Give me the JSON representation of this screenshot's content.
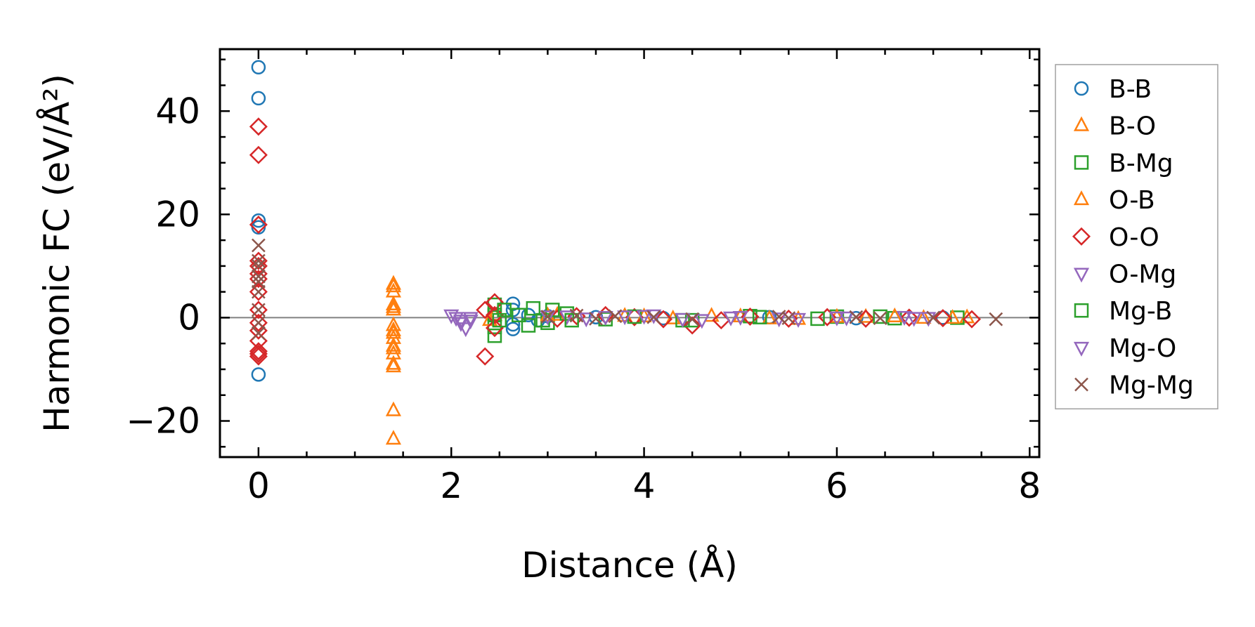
{
  "chart_data": {
    "type": "scatter",
    "title": "",
    "xlabel": "Distance (Å)",
    "ylabel": "Harmonic FC (eV/Å²)",
    "xlim": [
      -0.4,
      8.1
    ],
    "ylim": [
      -27,
      52
    ],
    "xticks": [
      0,
      2,
      4,
      6,
      8
    ],
    "yticks": [
      -20,
      0,
      20,
      40
    ],
    "ytick_labels": [
      "−20",
      "0",
      "20",
      "40"
    ],
    "zero_line": true,
    "legend_position": "right, outside",
    "series": [
      {
        "name": "B-B",
        "marker": "circle",
        "color": "#1f77b4",
        "x": [
          0,
          0,
          0,
          0,
          0,
          2.64,
          2.64,
          2.64,
          2.64,
          2.8,
          2.9,
          3.0,
          3.5,
          4.2,
          5.3,
          6.2,
          7.1
        ],
        "y": [
          48.5,
          42.5,
          18.8,
          17.5,
          -11,
          2.7,
          1.5,
          -1.3,
          -2.2,
          0.5,
          -0.5,
          0.3,
          0.1,
          -0.1,
          0.1,
          -0.1,
          0
        ]
      },
      {
        "name": "B-O",
        "marker": "triangle-up",
        "color": "#ff7f0e",
        "x": [
          1.4,
          1.4,
          1.4,
          1.4,
          1.4,
          1.4,
          1.4,
          1.4,
          1.4,
          1.4,
          1.4,
          2.45,
          3.1,
          3.8,
          4.3,
          5.0,
          5.6,
          6.3,
          6.9,
          7.35
        ],
        "y": [
          6,
          5,
          2.5,
          1.5,
          -1.5,
          -3,
          -5.5,
          -7,
          -9.5,
          -18,
          -23.5,
          0.5,
          0.5,
          0.3,
          -0.2,
          0.2,
          -0.3,
          0.1,
          -0.1,
          0
        ]
      },
      {
        "name": "B-Mg",
        "marker": "square",
        "color": "#2ca02c",
        "x": [
          2.45,
          2.45,
          2.45,
          2.45,
          2.7,
          2.85,
          3.0,
          3.2,
          3.6,
          4.5,
          5.1,
          6.0,
          6.6,
          7.25
        ],
        "y": [
          2.5,
          0.5,
          -1.8,
          -3.5,
          0.5,
          1.8,
          -1,
          0.8,
          -0.3,
          -0.5,
          0.3,
          0.2,
          -0.1,
          0
        ]
      },
      {
        "name": "O-B",
        "marker": "triangle-up",
        "color": "#ff7f0e",
        "x": [
          1.4,
          1.4,
          1.4,
          1.4,
          1.4,
          1.4,
          2.4,
          3.0,
          4.0,
          4.7,
          5.3,
          6.0,
          6.6,
          7.2
        ],
        "y": [
          6.5,
          2,
          -2.5,
          -4,
          -6,
          -9,
          -0.5,
          0.4,
          0.2,
          0.3,
          -0.2,
          0.1,
          0.2,
          -0.1
        ]
      },
      {
        "name": "O-O",
        "marker": "diamond",
        "color": "#d62728",
        "x": [
          0,
          0,
          0,
          0,
          0,
          0,
          0,
          0,
          0,
          0,
          0,
          0,
          0,
          0,
          0,
          2.35,
          2.35,
          2.45,
          2.45,
          2.45,
          3.1,
          3.3,
          3.6,
          3.9,
          4.2,
          4.5,
          4.8,
          5.1,
          5.5,
          5.9,
          6.3,
          6.75,
          7.1,
          7.4
        ],
        "y": [
          37,
          31.5,
          18,
          11,
          10,
          8.5,
          7.5,
          5,
          1.5,
          -1,
          -2.5,
          -4.5,
          -6.5,
          -7,
          -7.5,
          1.5,
          -7.5,
          3,
          0.5,
          -2,
          -0.2,
          0.3,
          0.5,
          0.1,
          -0.3,
          -1.5,
          -0.5,
          0.2,
          -0.2,
          0.1,
          -0.2,
          0,
          -0.1,
          -0.3
        ]
      },
      {
        "name": "O-Mg",
        "marker": "triangle-down",
        "color": "#9467bd",
        "x": [
          2.05,
          2.1,
          2.15,
          2.2,
          3.2,
          3.6,
          4.1,
          4.6,
          5.0,
          5.6,
          6.0,
          6.7,
          6.95
        ],
        "y": [
          0,
          -0.5,
          -2,
          0,
          0.3,
          0.2,
          0.5,
          -0.4,
          0.2,
          -0.2,
          0.1,
          0.2,
          0
        ]
      },
      {
        "name": "Mg-B",
        "marker": "square",
        "color": "#2ca02c",
        "x": [
          2.5,
          2.55,
          2.8,
          2.95,
          3.05,
          3.25,
          3.9,
          4.4,
          5.2,
          5.8,
          6.45
        ],
        "y": [
          -0.5,
          1.5,
          -1.5,
          -0.5,
          1.5,
          -0.5,
          0.2,
          -0.5,
          0.1,
          -0.2,
          0.2
        ]
      },
      {
        "name": "Mg-O",
        "marker": "triangle-down",
        "color": "#9467bd",
        "x": [
          2.0,
          2.1,
          2.2,
          3.0,
          3.4,
          3.8,
          4.0,
          4.4,
          4.9,
          5.4,
          6.1,
          6.8
        ],
        "y": [
          0.5,
          -1,
          -0.5,
          0.3,
          -0.1,
          0.3,
          0.4,
          -0.2,
          0.1,
          -0.1,
          0.1,
          0
        ]
      },
      {
        "name": "Mg-Mg",
        "marker": "x",
        "color": "#8c564b",
        "x": [
          0,
          0,
          0,
          0,
          0,
          0,
          0,
          0,
          0,
          3.0,
          3.3,
          3.5,
          3.7,
          4.1,
          4.5,
          5.4,
          5.5,
          6.2,
          6.45,
          7.0,
          7.65
        ],
        "y": [
          14,
          11,
          10,
          8,
          7,
          5,
          1.5,
          -1,
          -3,
          0.2,
          0.4,
          -0.2,
          0.3,
          0.1,
          -0.3,
          0.2,
          -0.1,
          0.1,
          -0.1,
          0,
          -0.3
        ]
      }
    ]
  }
}
